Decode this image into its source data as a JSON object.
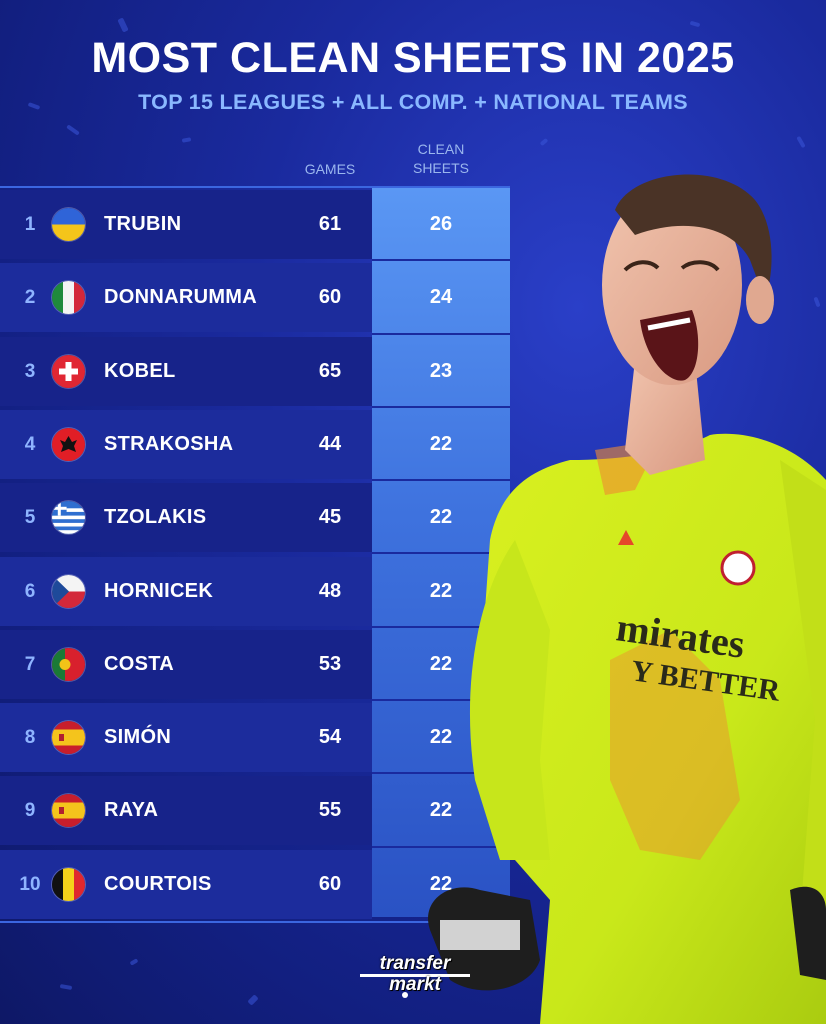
{
  "title": "MOST CLEAN SHEETS IN 2025",
  "subtitle": "TOP 15 LEAGUES + ALL COMP. + NATIONAL TEAMS",
  "columns": {
    "games": "GAMES",
    "clean_sheets_line1": "CLEAN",
    "clean_sheets_line2": "SHEETS"
  },
  "colors": {
    "background": "#1a2a9e",
    "accent": "#5a97f4",
    "subtitle": "#8ab8ff",
    "rank": "#8fb4ff"
  },
  "chart_data": {
    "type": "table",
    "title": "MOST CLEAN SHEETS IN 2025",
    "subtitle": "TOP 15 LEAGUES + ALL COMP. + NATIONAL TEAMS",
    "columns": [
      "GAMES",
      "CLEAN SHEETS"
    ],
    "rows": [
      {
        "rank": "1",
        "name": "TRUBIN",
        "flag": "ukraine-flag-icon",
        "games": 61,
        "clean_sheets": 26
      },
      {
        "rank": "2",
        "name": "DONNARUMMA",
        "flag": "italy-flag-icon",
        "games": 60,
        "clean_sheets": 24
      },
      {
        "rank": "3",
        "name": "KOBEL",
        "flag": "switzerland-flag-icon",
        "games": 65,
        "clean_sheets": 23
      },
      {
        "rank": "4",
        "name": "STRAKOSHA",
        "flag": "albania-flag-icon",
        "games": 44,
        "clean_sheets": 22
      },
      {
        "rank": "5",
        "name": "TZOLAKIS",
        "flag": "greece-flag-icon",
        "games": 45,
        "clean_sheets": 22
      },
      {
        "rank": "6",
        "name": "HORNICEK",
        "flag": "czechia-flag-icon",
        "games": 48,
        "clean_sheets": 22
      },
      {
        "rank": "7",
        "name": "COSTA",
        "flag": "portugal-flag-icon",
        "games": 53,
        "clean_sheets": 22
      },
      {
        "rank": "8",
        "name": "SIMÓN",
        "flag": "spain-flag-icon",
        "games": 54,
        "clean_sheets": 22
      },
      {
        "rank": "9",
        "name": "RAYA",
        "flag": "spain-flag-icon",
        "games": 55,
        "clean_sheets": 22
      },
      {
        "rank": "10",
        "name": "COURTOIS",
        "flag": "belgium-flag-icon",
        "games": 60,
        "clean_sheets": 22
      }
    ]
  },
  "player_photo": {
    "icon": "goalkeeper-celebrating-illustration",
    "shirt_line1": "mirates",
    "shirt_line2": "Y BETTER"
  },
  "logo": {
    "line1": "transfer",
    "line2": "markt"
  }
}
